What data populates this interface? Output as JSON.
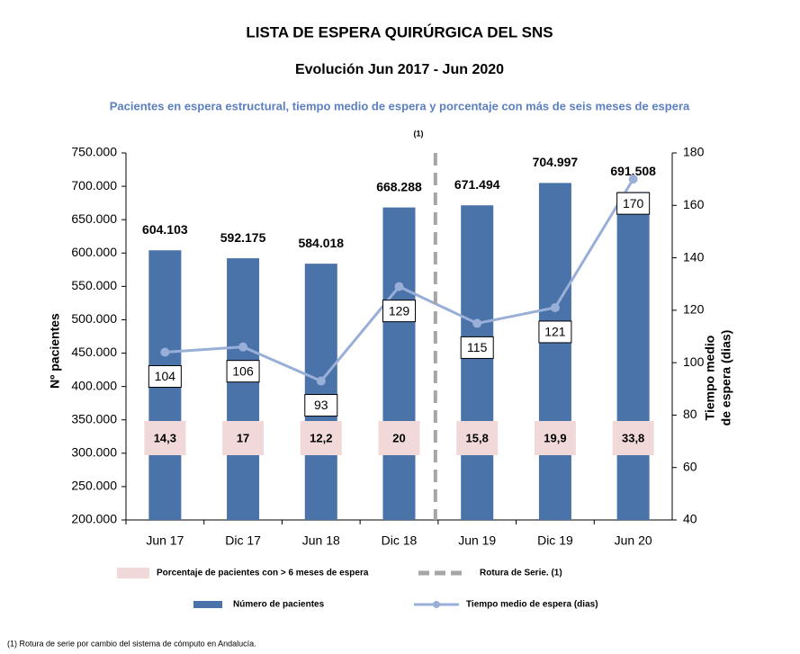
{
  "chart_data": {
    "type": "bar",
    "title": "LISTA DE ESPERA QUIRÚRGICA DEL SNS",
    "subtitle": "Evolución Jun 2017 -  Jun 2020",
    "caption": "Pacientes en espera estructural, tiempo medio de espera  y porcentaje con más de seis meses de espera",
    "annotation": "(1)",
    "footnote": "(1) Rotura de serie por cambio del sistema de cómputo en Andalucía.",
    "ylabel": "Nº pacientes",
    "y2label": [
      "Tiempo medio",
      "de espera (dias)"
    ],
    "categories": [
      "Jun 17",
      "Dic 17",
      "Jun 18",
      "Dic 18",
      "Jun 19",
      "Dic 19",
      "Jun 20"
    ],
    "break_label": "Rotura de Serie. (1)",
    "break_color": "#a6a6a6",
    "series": [
      {
        "name": "Número de pacientes",
        "type": "bar",
        "color": "#4a73aa",
        "values": [
          604103,
          592175,
          584018,
          668288,
          671494,
          704997,
          691508
        ],
        "value_labels": [
          "604.103",
          "592.175",
          "584.018",
          "668.288",
          "671.494",
          "704.997",
          "691.508"
        ]
      },
      {
        "name": "Tiempo medio de espera (dias)",
        "type": "line",
        "axis": "y2",
        "color": "#9aafd8",
        "values": [
          104,
          106,
          93,
          129,
          115,
          121,
          170
        ]
      },
      {
        "name": "Porcentaje de pacientes con > 6 meses  de espera",
        "type": "label",
        "color": "#f2d9d9",
        "values": [
          14.3,
          17,
          12.2,
          20,
          15.8,
          19.9,
          33.8
        ],
        "value_labels": [
          "14,3",
          "17",
          "12,2",
          "20",
          "15,8",
          "19,9",
          "33,8"
        ]
      }
    ],
    "ylim": [
      200000,
      750000
    ],
    "yticks": [
      {
        "value": 200000,
        "label": "200.000"
      },
      {
        "value": 250000,
        "label": "250.000"
      },
      {
        "value": 300000,
        "label": "300.000"
      },
      {
        "value": 350000,
        "label": "350.000"
      },
      {
        "value": 400000,
        "label": "400.000"
      },
      {
        "value": 450000,
        "label": "450.000"
      },
      {
        "value": 500000,
        "label": "500.000"
      },
      {
        "value": 550000,
        "label": "550.000"
      },
      {
        "value": 600000,
        "label": "600.000"
      },
      {
        "value": 650000,
        "label": "650.000"
      },
      {
        "value": 700000,
        "label": "700.000"
      },
      {
        "value": 750000,
        "label": "750.000"
      }
    ],
    "y2lim": [
      40,
      180
    ],
    "y2ticks": [
      40,
      60,
      80,
      100,
      120,
      140,
      160,
      180
    ],
    "grid": false
  }
}
